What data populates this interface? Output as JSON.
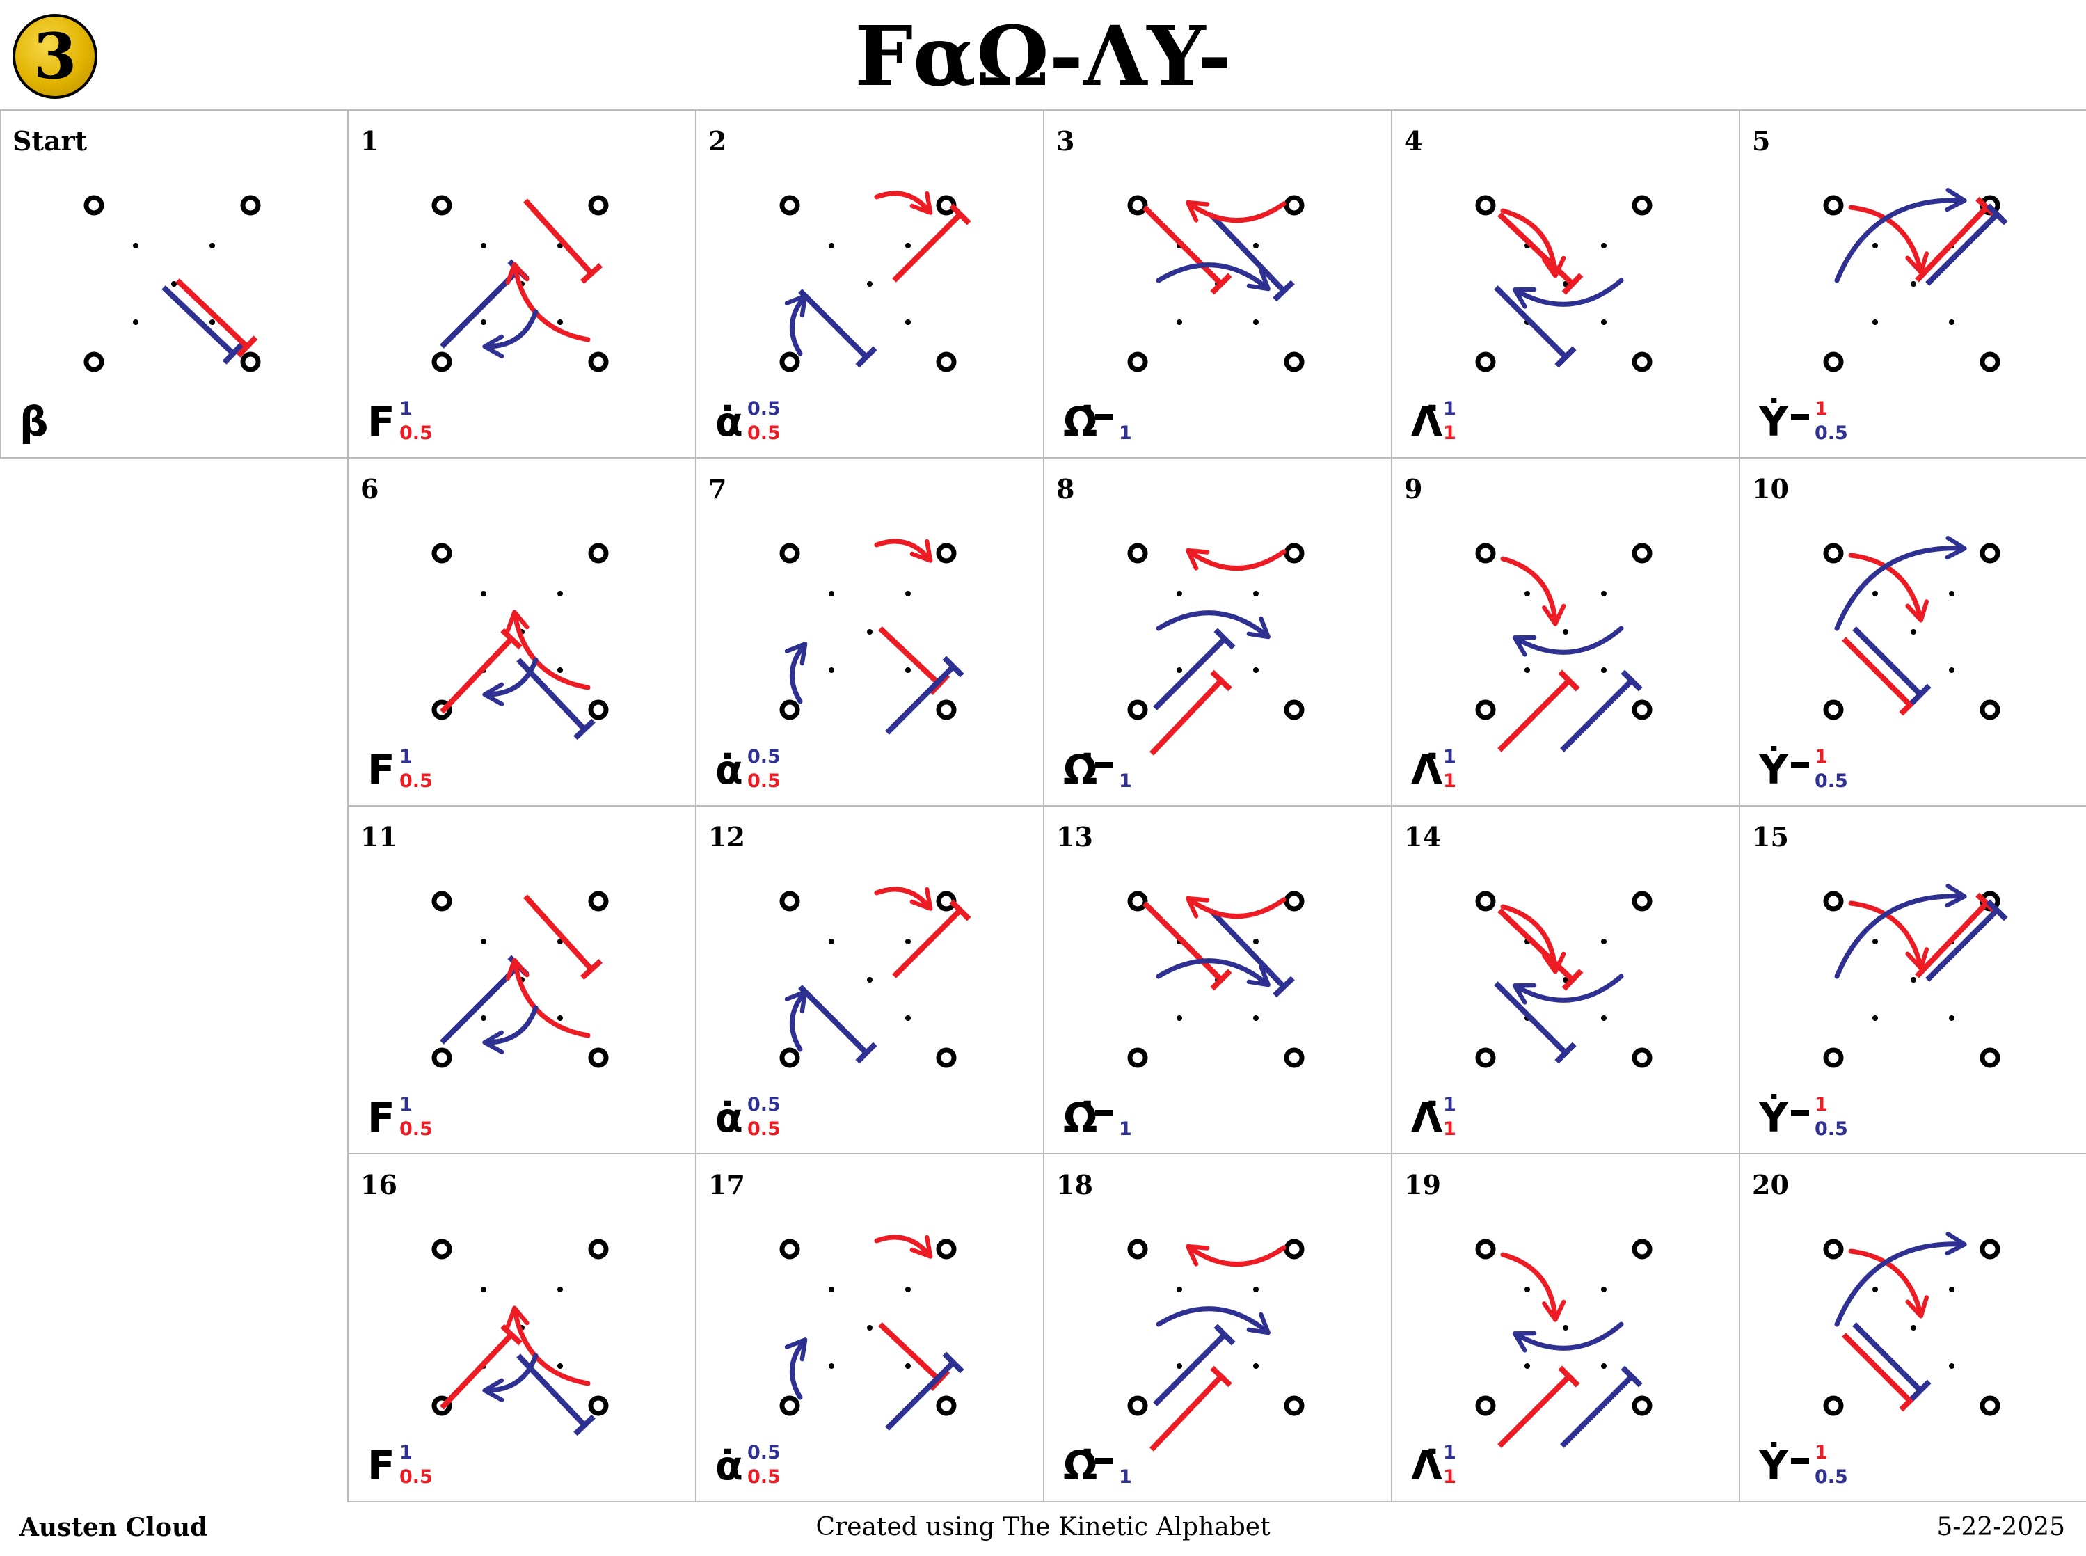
{
  "badge": "3",
  "title": "FαΩ-ΛY-",
  "footer": {
    "author": "Austen Cloud",
    "credit": "Created using The Kinetic Alphabet",
    "date": "5-22-2025"
  },
  "colors": {
    "blue": "#2e3192",
    "red": "#ed1c24",
    "grid": "#bbbbbb"
  },
  "cells": [
    {
      "label": "Start",
      "glyph": "β",
      "sup": "",
      "sub": "",
      "sup_color": "",
      "sub_color": "",
      "dash": false
    },
    {
      "label": "1",
      "glyph": "F",
      "sup": "1",
      "sub": "0.5",
      "sup_color": "blue",
      "sub_color": "red",
      "dash": false
    },
    {
      "label": "2",
      "glyph": "α̇",
      "sup": "0.5",
      "sub": "0.5",
      "sup_color": "blue",
      "sub_color": "red",
      "dash": false
    },
    {
      "label": "3",
      "glyph": "Ω̇",
      "sup": "",
      "sub": "1",
      "sup_color": "",
      "sub_color": "blue",
      "dash": true
    },
    {
      "label": "4",
      "glyph": "Λ̇",
      "sup": "1",
      "sub": "1",
      "sup_color": "blue",
      "sub_color": "red",
      "dash": false
    },
    {
      "label": "5",
      "glyph": "Ẏ",
      "sup": "1",
      "sub": "0.5",
      "sup_color": "red",
      "sub_color": "blue",
      "dash": true
    },
    {
      "label": "6",
      "glyph": "F",
      "sup": "1",
      "sub": "0.5",
      "sup_color": "blue",
      "sub_color": "red",
      "dash": false
    },
    {
      "label": "7",
      "glyph": "α̇",
      "sup": "0.5",
      "sub": "0.5",
      "sup_color": "blue",
      "sub_color": "red",
      "dash": false
    },
    {
      "label": "8",
      "glyph": "Ω̇",
      "sup": "",
      "sub": "1",
      "sup_color": "",
      "sub_color": "blue",
      "dash": true
    },
    {
      "label": "9",
      "glyph": "Λ̇",
      "sup": "1",
      "sub": "1",
      "sup_color": "blue",
      "sub_color": "red",
      "dash": false
    },
    {
      "label": "10",
      "glyph": "Ẏ",
      "sup": "1",
      "sub": "0.5",
      "sup_color": "red",
      "sub_color": "blue",
      "dash": true
    },
    {
      "label": "11",
      "glyph": "F",
      "sup": "1",
      "sub": "0.5",
      "sup_color": "blue",
      "sub_color": "red",
      "dash": false
    },
    {
      "label": "12",
      "glyph": "α̇",
      "sup": "0.5",
      "sub": "0.5",
      "sup_color": "blue",
      "sub_color": "red",
      "dash": false
    },
    {
      "label": "13",
      "glyph": "Ω̇",
      "sup": "",
      "sub": "1",
      "sup_color": "",
      "sub_color": "blue",
      "dash": true
    },
    {
      "label": "14",
      "glyph": "Λ̇",
      "sup": "1",
      "sub": "1",
      "sup_color": "blue",
      "sub_color": "red",
      "dash": false
    },
    {
      "label": "15",
      "glyph": "Ẏ",
      "sup": "1",
      "sub": "0.5",
      "sup_color": "red",
      "sub_color": "blue",
      "dash": true
    },
    {
      "label": "16",
      "glyph": "F",
      "sup": "1",
      "sub": "0.5",
      "sup_color": "blue",
      "sub_color": "red",
      "dash": false
    },
    {
      "label": "17",
      "glyph": "α̇",
      "sup": "0.5",
      "sub": "0.5",
      "sup_color": "blue",
      "sub_color": "red",
      "dash": false
    },
    {
      "label": "18",
      "glyph": "Ω̇",
      "sup": "",
      "sub": "1",
      "sup_color": "",
      "sub_color": "blue",
      "dash": true
    },
    {
      "label": "19",
      "glyph": "Λ̇",
      "sup": "1",
      "sub": "1",
      "sup_color": "blue",
      "sub_color": "red",
      "dash": false
    },
    {
      "label": "20",
      "glyph": "Ẏ",
      "sup": "1",
      "sub": "0.5",
      "sup_color": "red",
      "sub_color": "blue",
      "dash": true
    }
  ]
}
